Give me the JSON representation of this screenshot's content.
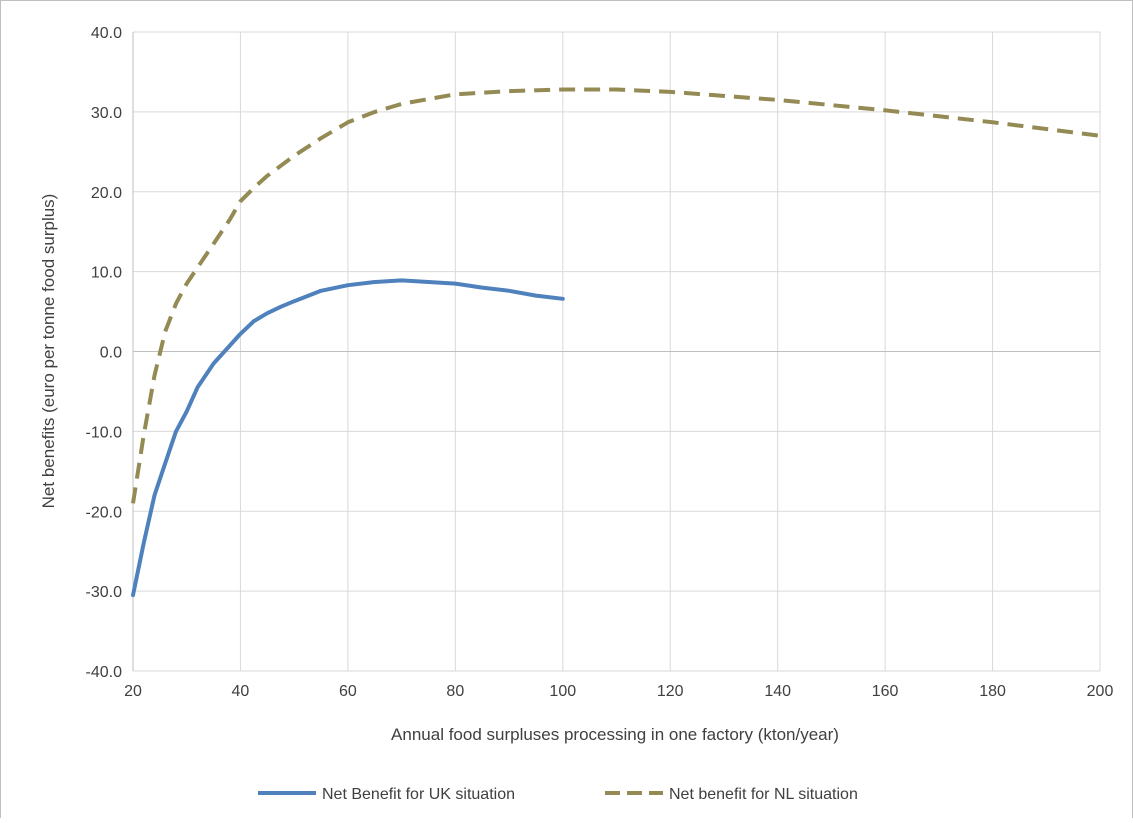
{
  "chart_data": {
    "type": "line",
    "title": "",
    "xlabel": "Annual food surpluses processing in one factory (kton/year)",
    "ylabel": "Net  benefits (euro per tonne food surplus)",
    "xlim": [
      20,
      200
    ],
    "ylim": [
      -40,
      40
    ],
    "x_ticks": [
      20,
      40,
      60,
      80,
      100,
      120,
      140,
      160,
      180,
      200
    ],
    "x_tick_labels": [
      "20",
      "40",
      "60",
      "80",
      "100",
      "120",
      "140",
      "160",
      "180",
      "200"
    ],
    "y_ticks": [
      -40,
      -30,
      -20,
      -10,
      0,
      10,
      20,
      30,
      40
    ],
    "y_tick_labels": [
      "-40.0",
      "-30.0",
      "-20.0",
      "-10.0",
      "0.0",
      "10.0",
      "20.0",
      "30.0",
      "40.0"
    ],
    "grid": true,
    "legend_position": "bottom",
    "series": [
      {
        "name": "Net Benefit for UK situation",
        "color": "#4f81bd",
        "style": "solid",
        "x": [
          20,
          22,
          24,
          26,
          28,
          30,
          32,
          35,
          40,
          42.5,
          45,
          47.5,
          50,
          55,
          60,
          65,
          70,
          75,
          80,
          85,
          90,
          95,
          100
        ],
        "y": [
          -30.5,
          -24,
          -18,
          -14,
          -10,
          -7.5,
          -4.5,
          -1.5,
          2.2,
          3.8,
          4.8,
          5.6,
          6.3,
          7.6,
          8.3,
          8.7,
          8.9,
          8.7,
          8.5,
          8.0,
          7.6,
          7.0,
          6.6
        ]
      },
      {
        "name": "Net benefit for NL situation",
        "color": "#948a54",
        "style": "dashed",
        "x": [
          20,
          22,
          24,
          26,
          28,
          30,
          32,
          35,
          38,
          40,
          42.5,
          45,
          50,
          55,
          60,
          65,
          70,
          80,
          90,
          100,
          110,
          120,
          140,
          160,
          180,
          200
        ],
        "y": [
          -19,
          -10.5,
          -3,
          2.5,
          6,
          8.5,
          10.5,
          13.5,
          16.5,
          18.8,
          20.5,
          22,
          24.5,
          26.7,
          28.7,
          30,
          31,
          32.2,
          32.6,
          32.8,
          32.8,
          32.5,
          31.5,
          30.2,
          28.7,
          27
        ]
      }
    ]
  }
}
